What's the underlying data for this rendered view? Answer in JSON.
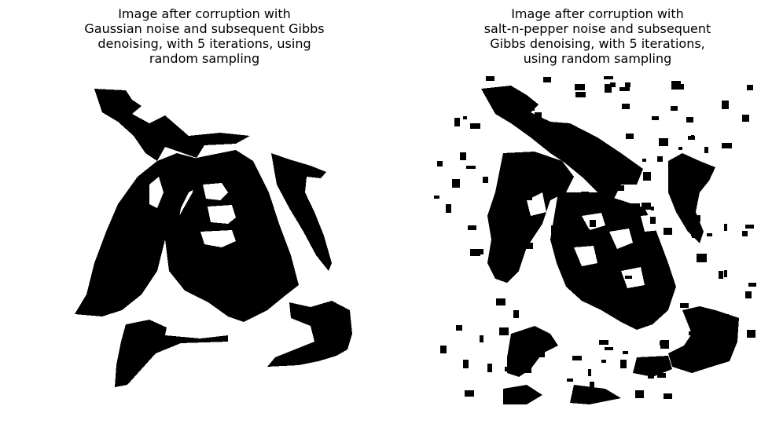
{
  "figure": {
    "panels": [
      {
        "title_lines": [
          "Image after corruption with",
          "Gaussian noise and subsequent Gibbs",
          "denoising, with 5 iterations, using",
          "random sampling"
        ],
        "image_icon": "binary-cow-face-denoised-clean",
        "colors": {
          "foreground": "#000000",
          "background": "#ffffff"
        }
      },
      {
        "title_lines": [
          "Image after corruption with",
          "salt-n-pepper noise and subsequent",
          "Gibbs denoising, with 5 iterations,",
          "using random sampling"
        ],
        "image_icon": "binary-cow-face-denoised-noisy",
        "colors": {
          "foreground": "#000000",
          "background": "#ffffff"
        }
      }
    ]
  }
}
